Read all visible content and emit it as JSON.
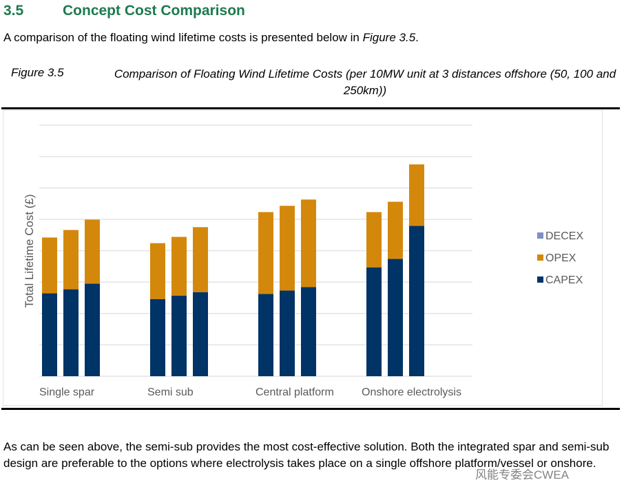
{
  "section": {
    "number": "3.5",
    "title": "Concept Cost Comparison"
  },
  "intro": {
    "text": "A comparison of the floating wind lifetime costs is presented below in ",
    "ref": "Figure 3.5",
    "end": "."
  },
  "figure": {
    "label": "Figure 3.5",
    "caption": "Comparison of Floating Wind Lifetime Costs (per 10MW unit at 3 distances offshore (50, 100 and 250km))"
  },
  "chart_data": {
    "type": "bar",
    "stacked": true,
    "title": "",
    "xlabel": "",
    "ylabel": "Total Lifetime Cost (£)",
    "ylim": [
      0,
      8
    ],
    "grid": true,
    "y_units_note": "arbitrary gridline units (no tick labels shown)",
    "categories": [
      "Single spar",
      "Semi sub",
      "Central platform",
      "Onshore electrolysis"
    ],
    "bars_per_category": 3,
    "legend_position": "right",
    "series": [
      {
        "name": "CAPEX",
        "color": "#003366",
        "values": [
          [
            2.64,
            2.77,
            2.95
          ],
          [
            2.46,
            2.57,
            2.68
          ],
          [
            2.62,
            2.73,
            2.84
          ],
          [
            3.47,
            3.74,
            4.79
          ]
        ]
      },
      {
        "name": "OPEX",
        "color": "#d4880b",
        "values": [
          [
            1.78,
            1.89,
            2.04
          ],
          [
            1.78,
            1.87,
            2.07
          ],
          [
            2.61,
            2.7,
            2.79
          ],
          [
            1.76,
            1.82,
            1.96
          ]
        ]
      },
      {
        "name": "DECEX",
        "color": "#7f8fc0",
        "values": [
          [
            0,
            0,
            0
          ],
          [
            0,
            0,
            0
          ],
          [
            0,
            0,
            0
          ],
          [
            0,
            0,
            0
          ]
        ]
      }
    ],
    "legend": [
      "DECEX",
      "OPEX",
      "CAPEX"
    ]
  },
  "body": {
    "text": "As can be seen above, the semi-sub provides the most cost-effective solution. Both the integrated spar and semi-sub design are preferable to the options where electrolysis takes place on a single offshore platform/vessel or onshore."
  },
  "watermark": "风能专委会CWEA"
}
